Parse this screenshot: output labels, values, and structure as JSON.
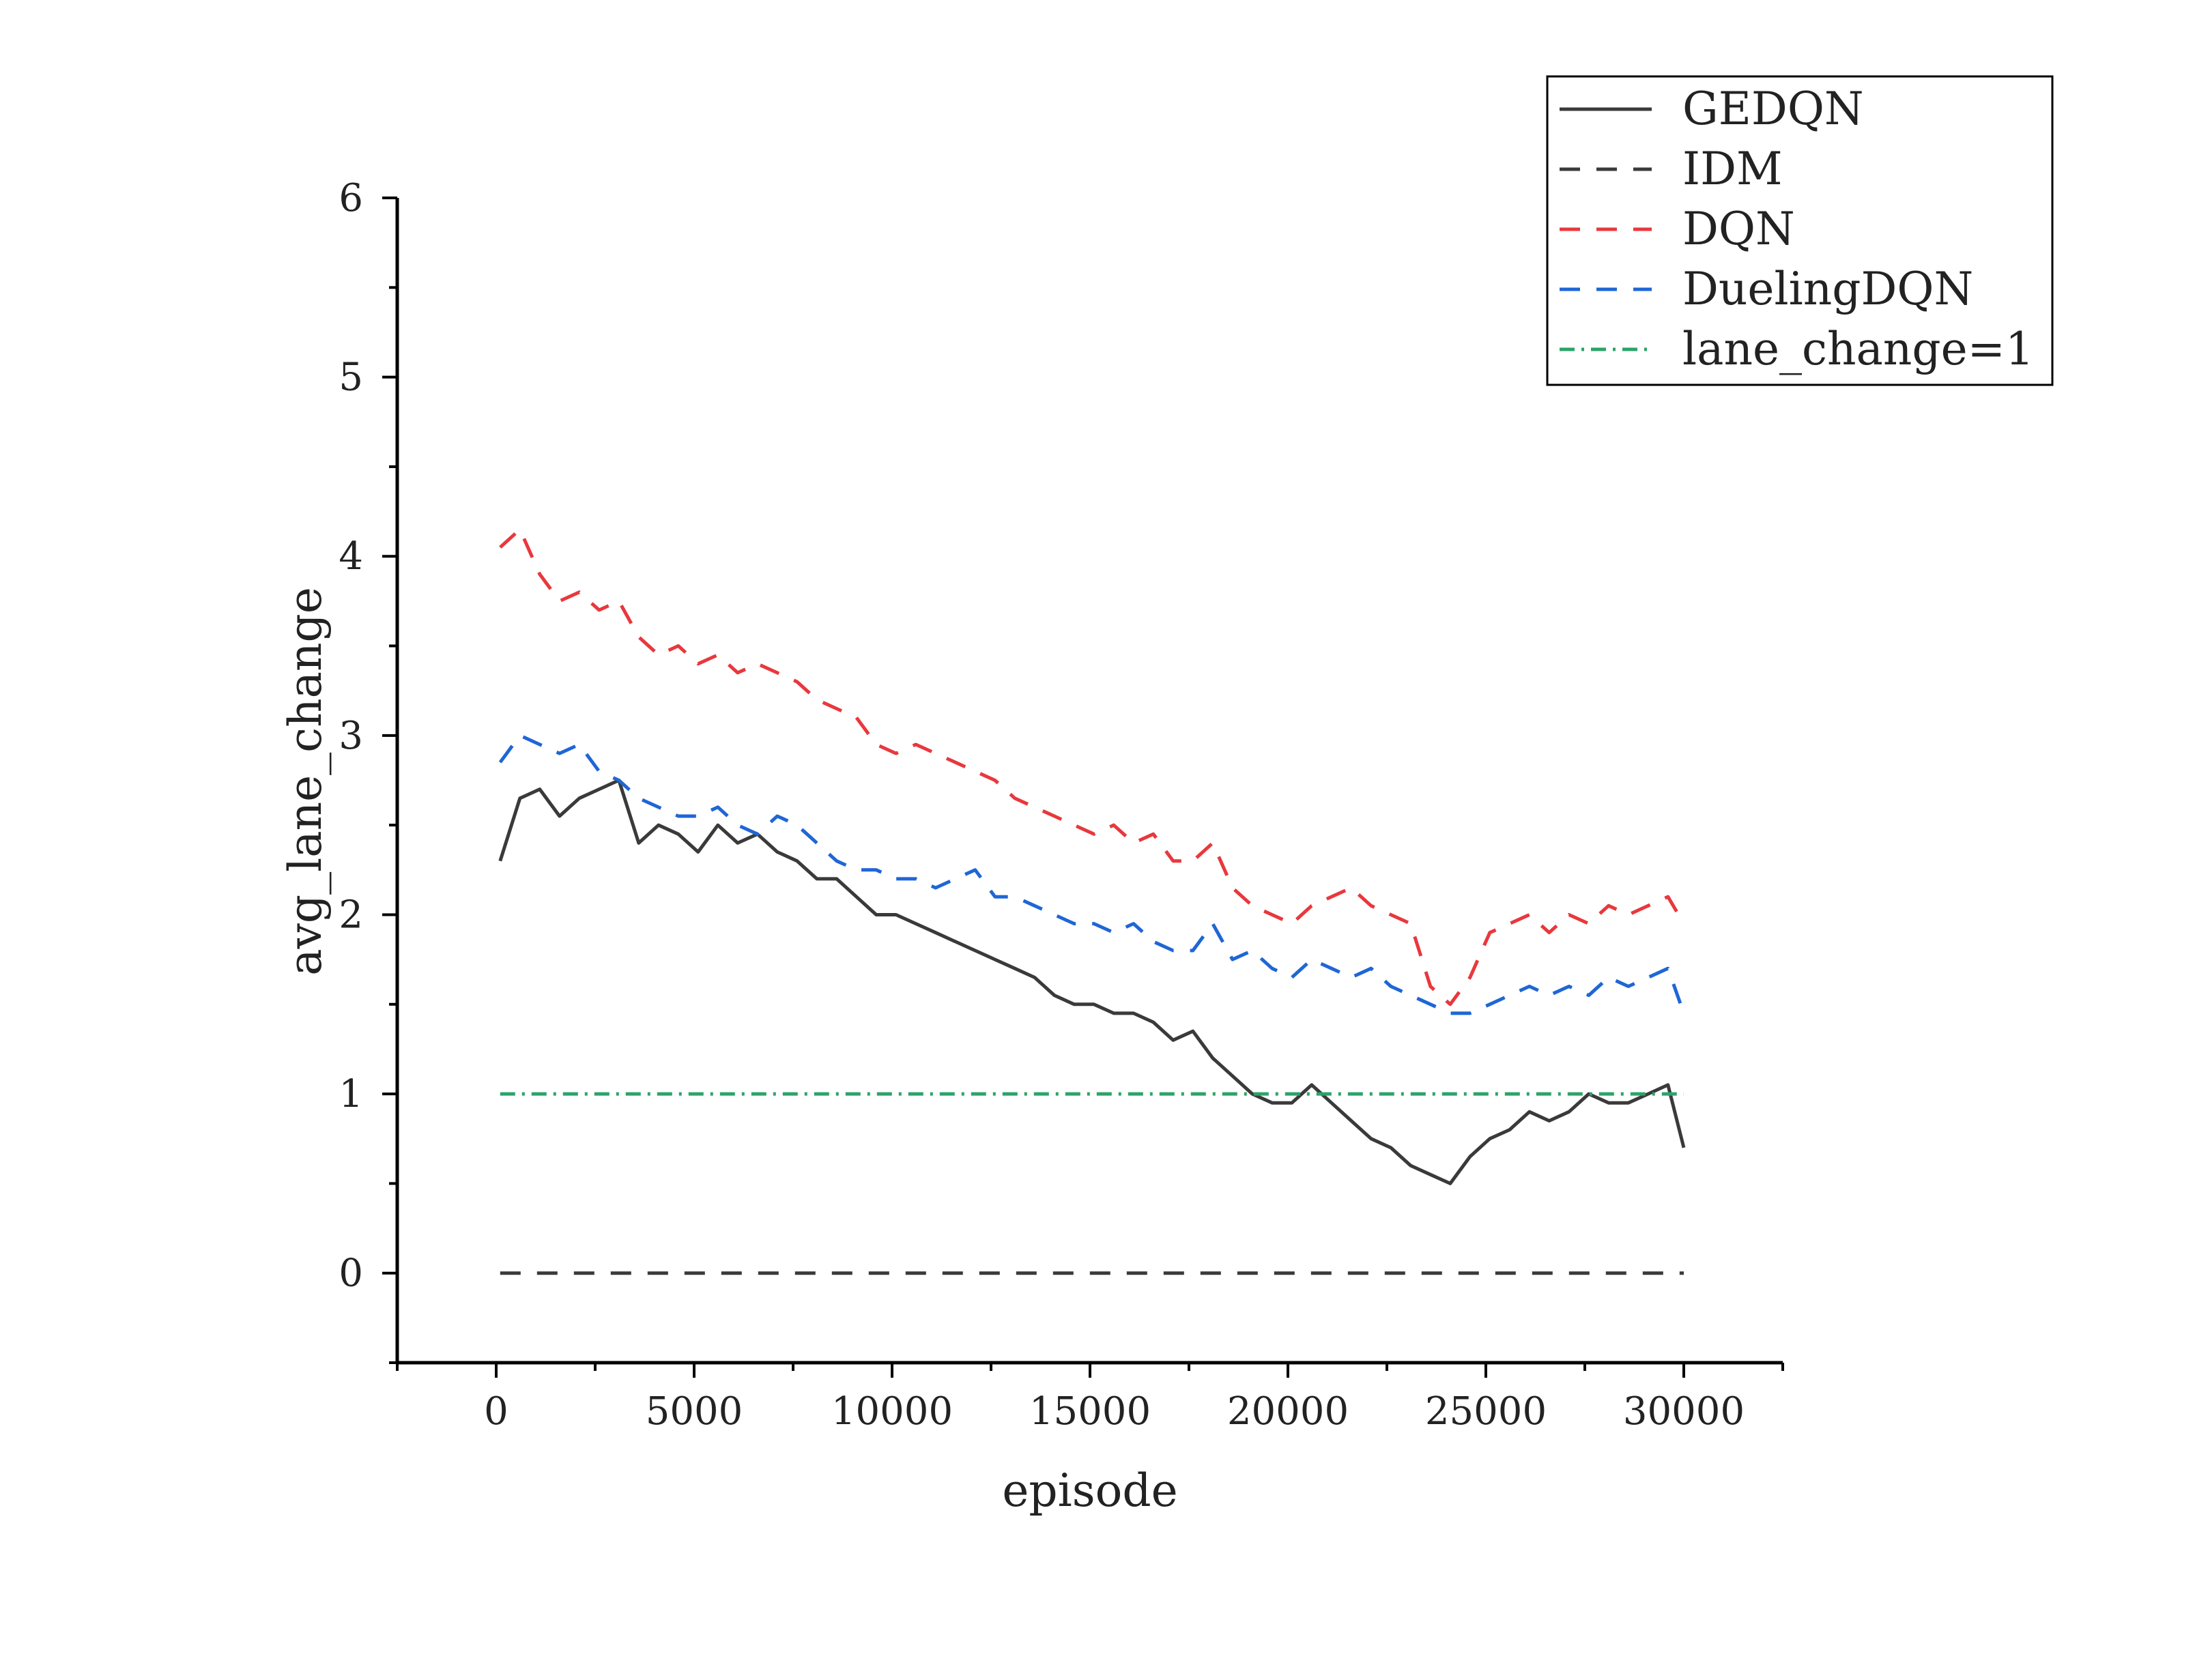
{
  "chart_data": {
    "type": "line",
    "title": "",
    "xlabel": "episode",
    "ylabel": "avg_lane_change",
    "xlim": [
      -2500,
      32500
    ],
    "ylim": [
      -0.5,
      6
    ],
    "x_ticks": [
      0,
      5000,
      10000,
      15000,
      20000,
      25000,
      30000
    ],
    "y_ticks": [
      0,
      1,
      2,
      3,
      4,
      5,
      6
    ],
    "grid": false,
    "legend_position": "top-right",
    "series": [
      {
        "name": "GEDQN",
        "color": "#3a3a3a",
        "style": "solid",
        "x": [
          100,
          600,
          1100,
          1600,
          2100,
          2600,
          3100,
          3600,
          4100,
          4600,
          5100,
          5600,
          6100,
          6600,
          7100,
          7600,
          8100,
          8600,
          9100,
          9600,
          10100,
          10600,
          11100,
          11600,
          12100,
          12600,
          13100,
          13600,
          14100,
          14600,
          15100,
          15600,
          16100,
          16600,
          17100,
          17600,
          18100,
          18600,
          19100,
          19600,
          20100,
          20600,
          21100,
          21600,
          22100,
          22600,
          23100,
          23600,
          24100,
          24600,
          25100,
          25600,
          26100,
          26600,
          27100,
          27600,
          28100,
          28600,
          29100,
          29600,
          30000
        ],
        "values": [
          2.3,
          2.65,
          2.7,
          2.55,
          2.65,
          2.7,
          2.75,
          2.4,
          2.5,
          2.45,
          2.35,
          2.5,
          2.4,
          2.45,
          2.35,
          2.3,
          2.2,
          2.2,
          2.1,
          2.0,
          2.0,
          1.95,
          1.9,
          1.85,
          1.8,
          1.75,
          1.7,
          1.65,
          1.55,
          1.5,
          1.5,
          1.45,
          1.45,
          1.4,
          1.3,
          1.35,
          1.2,
          1.1,
          1.0,
          0.95,
          0.95,
          1.05,
          0.95,
          0.85,
          0.75,
          0.7,
          0.6,
          0.55,
          0.5,
          0.65,
          0.75,
          0.8,
          0.9,
          0.85,
          0.9,
          1.0,
          0.95,
          0.95,
          1.0,
          1.05,
          0.7
        ]
      },
      {
        "name": "IDM",
        "color": "#3a3a3a",
        "style": "dashed",
        "x": [
          100,
          30000
        ],
        "values": [
          0,
          0
        ]
      },
      {
        "name": "DQN",
        "color": "#e8383d",
        "style": "dashed",
        "x": [
          100,
          600,
          1100,
          1600,
          2100,
          2600,
          3100,
          3600,
          4100,
          4600,
          5100,
          5600,
          6100,
          6600,
          7100,
          7600,
          8100,
          8600,
          9100,
          9600,
          10100,
          10600,
          11100,
          11600,
          12100,
          12600,
          13100,
          13600,
          14100,
          14600,
          15100,
          15600,
          16100,
          16600,
          17100,
          17600,
          18100,
          18600,
          19100,
          19600,
          20100,
          20600,
          21100,
          21600,
          22100,
          22600,
          23100,
          23600,
          24100,
          24600,
          25100,
          25600,
          26100,
          26600,
          27100,
          27600,
          28100,
          28600,
          29100,
          29600,
          30000
        ],
        "values": [
          4.05,
          4.15,
          3.9,
          3.75,
          3.8,
          3.7,
          3.75,
          3.55,
          3.45,
          3.5,
          3.4,
          3.45,
          3.35,
          3.4,
          3.35,
          3.3,
          3.2,
          3.15,
          3.1,
          2.95,
          2.9,
          2.95,
          2.9,
          2.85,
          2.8,
          2.75,
          2.65,
          2.6,
          2.55,
          2.5,
          2.45,
          2.5,
          2.4,
          2.45,
          2.3,
          2.3,
          2.4,
          2.15,
          2.05,
          2.0,
          1.95,
          2.05,
          2.1,
          2.15,
          2.05,
          2.0,
          1.95,
          1.6,
          1.5,
          1.65,
          1.9,
          1.95,
          2.0,
          1.9,
          2.0,
          1.95,
          2.05,
          2.0,
          2.05,
          2.1,
          1.95
        ]
      },
      {
        "name": "DuelingDQN",
        "color": "#1f66d6",
        "style": "dashed",
        "x": [
          100,
          600,
          1100,
          1600,
          2100,
          2600,
          3100,
          3600,
          4100,
          4600,
          5100,
          5600,
          6100,
          6600,
          7100,
          7600,
          8100,
          8600,
          9100,
          9600,
          10100,
          10600,
          11100,
          11600,
          12100,
          12600,
          13100,
          13600,
          14100,
          14600,
          15100,
          15600,
          16100,
          16600,
          17100,
          17600,
          18100,
          18600,
          19100,
          19600,
          20100,
          20600,
          21100,
          21600,
          22100,
          22600,
          23100,
          23600,
          24100,
          24600,
          25100,
          25600,
          26100,
          26600,
          27100,
          27600,
          28100,
          28600,
          29100,
          29600,
          30000
        ],
        "values": [
          2.85,
          3.0,
          2.95,
          2.9,
          2.95,
          2.8,
          2.75,
          2.65,
          2.6,
          2.55,
          2.55,
          2.6,
          2.5,
          2.45,
          2.55,
          2.5,
          2.4,
          2.3,
          2.25,
          2.25,
          2.2,
          2.2,
          2.15,
          2.2,
          2.25,
          2.1,
          2.1,
          2.05,
          2.0,
          1.95,
          1.95,
          1.9,
          1.95,
          1.85,
          1.8,
          1.8,
          1.95,
          1.75,
          1.8,
          1.7,
          1.65,
          1.75,
          1.7,
          1.65,
          1.7,
          1.6,
          1.55,
          1.5,
          1.45,
          1.45,
          1.5,
          1.55,
          1.6,
          1.55,
          1.6,
          1.55,
          1.65,
          1.6,
          1.65,
          1.7,
          1.45
        ]
      },
      {
        "name": "lane_change=1",
        "color": "#2ca36b",
        "style": "dashdot",
        "x": [
          100,
          30000
        ],
        "values": [
          1,
          1
        ]
      }
    ]
  }
}
